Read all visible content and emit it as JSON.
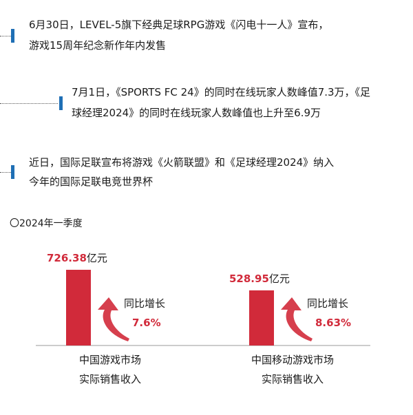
{
  "timeline": [
    {
      "line1": "6月30日，LEVEL-5旗下经典足球RPG游戏《闪电十一人》宣布，",
      "line2": "游戏15周年纪念新作年内发售"
    },
    {
      "line1": "7月1日，《SPORTS FC 24》的同时在线玩家人数峰值7.3万，《足",
      "line2": "球经理2024》的同时在线玩家人数峰值也上升至6.9万"
    },
    {
      "line1": "近日，国际足联宣布将游戏《火箭联盟》和《足球经理2024》纳入",
      "line2": "今年的国际足联电竞世界杯"
    }
  ],
  "chart_title": "〇2024年一季度",
  "colors": {
    "bar": "#d12a3a",
    "marker": "#1f6fb5",
    "text": "#1a1a1a",
    "axis": "#999999"
  },
  "chart_data": {
    "type": "bar",
    "title": "〇2024年一季度",
    "unit": "亿元",
    "categories": [
      {
        "line1": "中国游戏市场",
        "line2": "实际销售收入"
      },
      {
        "line1": "中国移动游戏市场",
        "line2": "实际销售收入"
      }
    ],
    "values": [
      726.38,
      528.95
    ],
    "value_labels": [
      "726.38",
      "528.95"
    ],
    "growth_label": "同比增长",
    "growth": [
      "7.6%",
      "8.63%"
    ],
    "grid": false
  }
}
